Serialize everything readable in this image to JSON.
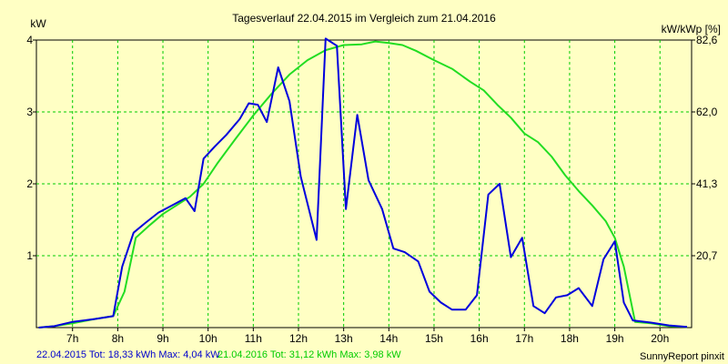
{
  "chart_data": {
    "type": "line",
    "title": "Tagesverlauf 22.04.2015 im Vergleich zum 21.04.2016",
    "ylabel_left": "kW",
    "ylabel_right": "kW/kWp [%]",
    "xlim": [
      6.2,
      20.7
    ],
    "ylim": [
      0,
      4
    ],
    "x_ticks": [
      {
        "x": 7,
        "label": "7h"
      },
      {
        "x": 8,
        "label": "8h"
      },
      {
        "x": 9,
        "label": "9h"
      },
      {
        "x": 10,
        "label": "10h"
      },
      {
        "x": 11,
        "label": "11h"
      },
      {
        "x": 12,
        "label": "12h"
      },
      {
        "x": 13,
        "label": "13h"
      },
      {
        "x": 14,
        "label": "14h"
      },
      {
        "x": 15,
        "label": "15h"
      },
      {
        "x": 16,
        "label": "16h"
      },
      {
        "x": 17,
        "label": "17h"
      },
      {
        "x": 18,
        "label": "18h"
      },
      {
        "x": 19,
        "label": "19h"
      },
      {
        "x": 20,
        "label": "20h"
      }
    ],
    "y_ticks_left": [
      {
        "y": 1,
        "label": "1"
      },
      {
        "y": 2,
        "label": "2"
      },
      {
        "y": 3,
        "label": "3"
      },
      {
        "y": 4,
        "label": "4"
      }
    ],
    "y_ticks_right": [
      {
        "y": 1,
        "label": "20,7"
      },
      {
        "y": 2,
        "label": "41,3"
      },
      {
        "y": 3,
        "label": "62,0"
      },
      {
        "y": 4,
        "label": "82,6"
      }
    ],
    "grid": true,
    "series": [
      {
        "name": "22.04.2015",
        "color": "#0000dd",
        "points": [
          [
            6.25,
            0
          ],
          [
            6.6,
            0.02
          ],
          [
            7,
            0.08
          ],
          [
            7.5,
            0.12
          ],
          [
            7.9,
            0.16
          ],
          [
            8.1,
            0.85
          ],
          [
            8.35,
            1.32
          ],
          [
            8.6,
            1.45
          ],
          [
            8.9,
            1.6
          ],
          [
            9.2,
            1.7
          ],
          [
            9.5,
            1.8
          ],
          [
            9.7,
            1.62
          ],
          [
            9.9,
            2.35
          ],
          [
            10.15,
            2.52
          ],
          [
            10.4,
            2.68
          ],
          [
            10.7,
            2.9
          ],
          [
            10.9,
            3.12
          ],
          [
            11.1,
            3.1
          ],
          [
            11.3,
            2.86
          ],
          [
            11.55,
            3.62
          ],
          [
            11.8,
            3.15
          ],
          [
            12.05,
            2.1
          ],
          [
            12.4,
            1.22
          ],
          [
            12.6,
            4.02
          ],
          [
            12.85,
            3.92
          ],
          [
            13.05,
            1.65
          ],
          [
            13.3,
            2.96
          ],
          [
            13.55,
            2.05
          ],
          [
            13.85,
            1.65
          ],
          [
            14.1,
            1.1
          ],
          [
            14.35,
            1.05
          ],
          [
            14.65,
            0.92
          ],
          [
            14.9,
            0.5
          ],
          [
            15.15,
            0.35
          ],
          [
            15.4,
            0.25
          ],
          [
            15.7,
            0.25
          ],
          [
            15.95,
            0.45
          ],
          [
            16.2,
            1.85
          ],
          [
            16.45,
            2.0
          ],
          [
            16.7,
            0.98
          ],
          [
            16.95,
            1.25
          ],
          [
            17.2,
            0.3
          ],
          [
            17.45,
            0.2
          ],
          [
            17.7,
            0.42
          ],
          [
            17.95,
            0.45
          ],
          [
            18.2,
            0.55
          ],
          [
            18.5,
            0.3
          ],
          [
            18.75,
            0.95
          ],
          [
            19.0,
            1.2
          ],
          [
            19.2,
            0.35
          ],
          [
            19.4,
            0.1
          ],
          [
            19.8,
            0.07
          ],
          [
            20.2,
            0.03
          ],
          [
            20.6,
            0.01
          ]
        ]
      },
      {
        "name": "21.04.2016",
        "color": "#22dd22",
        "points": [
          [
            6.25,
            0
          ],
          [
            6.6,
            0.02
          ],
          [
            7,
            0.06
          ],
          [
            7.5,
            0.12
          ],
          [
            7.9,
            0.16
          ],
          [
            8.15,
            0.5
          ],
          [
            8.4,
            1.25
          ],
          [
            8.7,
            1.42
          ],
          [
            9.0,
            1.58
          ],
          [
            9.3,
            1.7
          ],
          [
            9.6,
            1.82
          ],
          [
            9.9,
            2.0
          ],
          [
            10.2,
            2.28
          ],
          [
            10.6,
            2.62
          ],
          [
            11.0,
            2.95
          ],
          [
            11.4,
            3.25
          ],
          [
            11.8,
            3.52
          ],
          [
            12.2,
            3.72
          ],
          [
            12.6,
            3.86
          ],
          [
            13.0,
            3.93
          ],
          [
            13.4,
            3.94
          ],
          [
            13.7,
            3.98
          ],
          [
            14.0,
            3.96
          ],
          [
            14.3,
            3.93
          ],
          [
            14.6,
            3.85
          ],
          [
            15.0,
            3.72
          ],
          [
            15.4,
            3.6
          ],
          [
            15.8,
            3.42
          ],
          [
            16.1,
            3.3
          ],
          [
            16.4,
            3.1
          ],
          [
            16.7,
            2.92
          ],
          [
            17.0,
            2.7
          ],
          [
            17.3,
            2.58
          ],
          [
            17.6,
            2.38
          ],
          [
            17.9,
            2.12
          ],
          [
            18.2,
            1.9
          ],
          [
            18.5,
            1.7
          ],
          [
            18.8,
            1.48
          ],
          [
            19.0,
            1.25
          ],
          [
            19.2,
            0.85
          ],
          [
            19.45,
            0.08
          ],
          [
            19.8,
            0.06
          ],
          [
            20.2,
            0.02
          ],
          [
            20.6,
            0.01
          ]
        ]
      }
    ]
  },
  "footer": {
    "left_text": "22.04.2015 Tot: 18,33 kWh Max: 4,04 kW",
    "mid_text": "21.04.2016 Tot: 31,12 kWh Max: 3,98 kW",
    "right_text": "SunnyReport pinxit"
  }
}
